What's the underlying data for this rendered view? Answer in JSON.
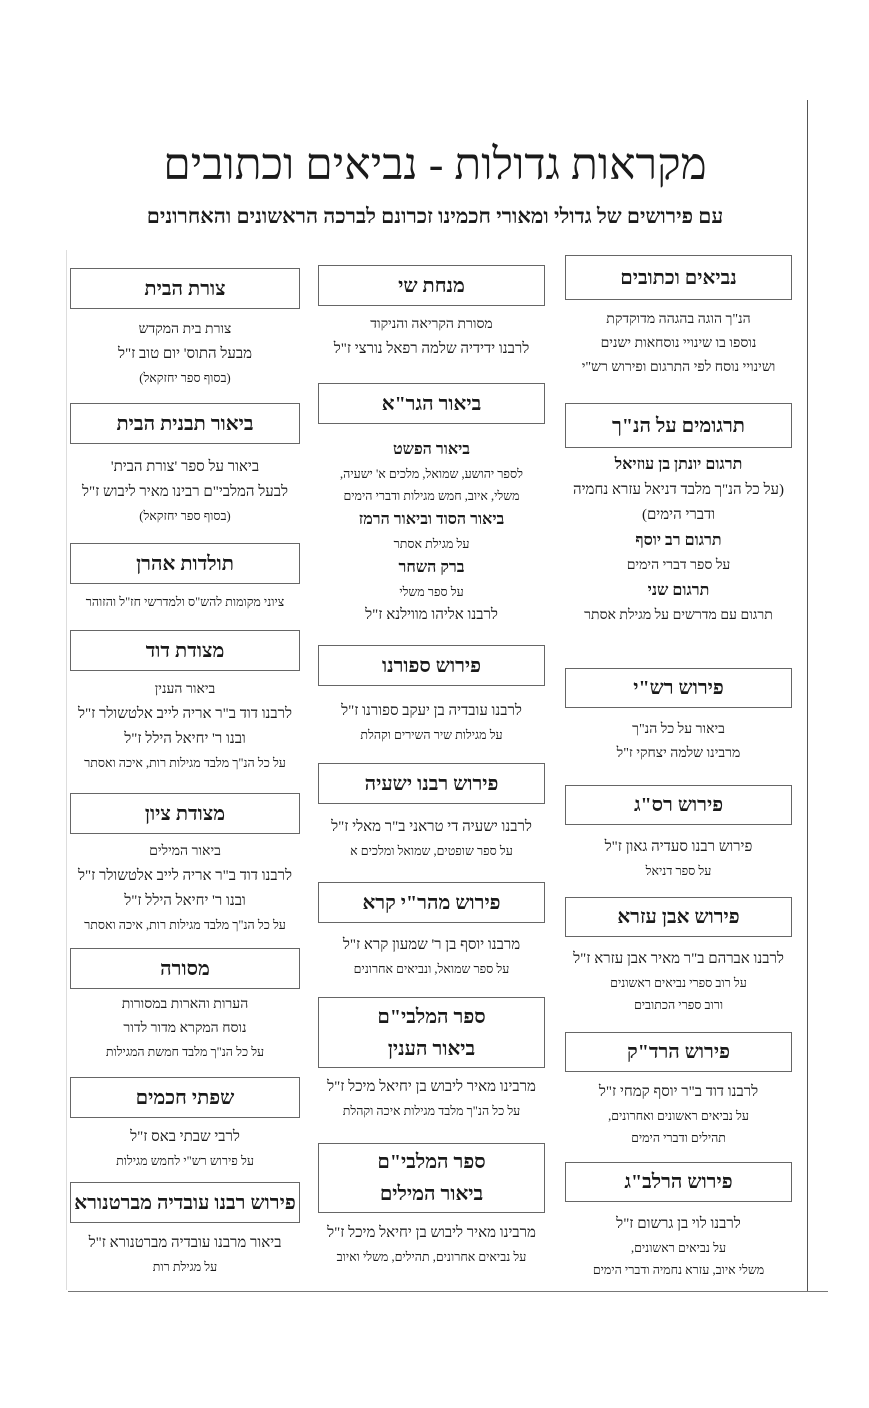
{
  "header": {
    "title": "מקראות גדולות - נביאים וכתובים",
    "subtitle": "עם פירושים של גדולי ומאורי חכמינו זכרונם לברכה הראשונים והאחרונים"
  },
  "columns": {
    "right": [
      {
        "heading": [
          "נביאים וכתובים"
        ],
        "lines": [
          {
            "text": "הנ\"ך הוגה בהגהה מדוקדקת",
            "kind": "n"
          },
          {
            "text": "נוספו בו שינויי נוסחאות ישנים",
            "kind": "n"
          },
          {
            "text": "ושינויי נוסח לפי התרגום ופירוש רש\"י",
            "kind": "n"
          }
        ]
      },
      {
        "heading": [
          "תרגומים על הנ\"ך"
        ],
        "lines": [
          {
            "text": "תרגום יונתן בן עוזיאל",
            "kind": "h"
          },
          {
            "text": "(על כל הנ\"ך מלבד דניאל עזרא נחמיה",
            "kind": "b"
          },
          {
            "text": "ודברי הימים)",
            "kind": "b"
          },
          {
            "text": "תרגום רב יוסף",
            "kind": "h"
          },
          {
            "text": "על ספר דברי הימים",
            "kind": "n"
          },
          {
            "text": "תרגום שני",
            "kind": "h"
          },
          {
            "text": "תרגום עם מדרשים על מגילת אסתר",
            "kind": "n"
          }
        ]
      },
      {
        "heading": [
          "פירוש רש\"י"
        ],
        "lines": [
          {
            "text": "ביאור על כל הנ\"ך",
            "kind": "n"
          },
          {
            "text": "מרבינו שלמה יצחקי ז\"ל",
            "kind": "n"
          }
        ]
      },
      {
        "heading": [
          "פירוש רס\"ג"
        ],
        "lines": [
          {
            "text": "פירוש רבנו סעדיה גאון ז\"ל",
            "kind": "b"
          },
          {
            "text": "על ספר דניאל",
            "kind": "s"
          }
        ]
      },
      {
        "heading": [
          "פירוש אבן עזרא"
        ],
        "lines": [
          {
            "text": "לרבנו אברהם ב\"ר מאיר אבן עזרא ז\"ל",
            "kind": "b"
          },
          {
            "text": "על רוב ספרי נביאים ראשונים",
            "kind": "s"
          },
          {
            "text": "ורוב ספרי הכתובים",
            "kind": "s"
          }
        ]
      },
      {
        "heading": [
          "פירוש הרד\"ק"
        ],
        "lines": [
          {
            "text": "לרבנו דוד ב\"ר יוסף קמחי ז\"ל",
            "kind": "b"
          },
          {
            "text": "על נביאים ראשונים ואחרונים,",
            "kind": "s"
          },
          {
            "text": "תהילים ודברי הימים",
            "kind": "s"
          }
        ]
      },
      {
        "heading": [
          "פירוש הרלב\"ג"
        ],
        "lines": [
          {
            "text": "לרבנו לוי בן גרשום ז\"ל",
            "kind": "b"
          },
          {
            "text": "על נביאים ראשונים,",
            "kind": "s"
          },
          {
            "text": "משלי איוב, עזרא נחמיה ודברי הימים",
            "kind": "s"
          }
        ]
      }
    ],
    "middle": [
      {
        "heading": [
          "מנחת שי"
        ],
        "lines": [
          {
            "text": "מסורת הקריאה והניקוד",
            "kind": "n"
          },
          {
            "text": "לרבנו ידידיה שלמה רפאל נורצי ז\"ל",
            "kind": "b"
          }
        ]
      },
      {
        "heading": [
          "ביאור הגר\"א"
        ],
        "lines": [
          {
            "text": "ביאור הפשט",
            "kind": "h"
          },
          {
            "text": "לספר יהושע, שמואל, מלכים א' ישעיה,",
            "kind": "s"
          },
          {
            "text": "משלי, איוב, חמש מגילות ודברי הימים",
            "kind": "s"
          },
          {
            "text": "ביאור הסוד וביאור הרמז",
            "kind": "h"
          },
          {
            "text": "על מגילת אסתר",
            "kind": "s"
          },
          {
            "text": "ברק השחר",
            "kind": "h"
          },
          {
            "text": "על ספר משלי",
            "kind": "s"
          },
          {
            "text": "לרבנו אליהו מווילנא ז\"ל",
            "kind": "b"
          }
        ]
      },
      {
        "heading": [
          "פירוש ספורנו"
        ],
        "lines": [
          {
            "text": "לרבנו עובדיה בן יעקב ספורנו ז\"ל",
            "kind": "b"
          },
          {
            "text": "על מגילות שיר השירים וקהלת",
            "kind": "s"
          }
        ]
      },
      {
        "heading": [
          "פירוש רבנו ישעיה"
        ],
        "lines": [
          {
            "text": "לרבנו ישעיה די טראני ב\"ר מאלי ז\"ל",
            "kind": "b"
          },
          {
            "text": "על ספר שופטים, שמואל ומלכים א",
            "kind": "s"
          }
        ]
      },
      {
        "heading": [
          "פירוש מהר\"י קרא"
        ],
        "lines": [
          {
            "text": "מרבנו יוסף בן ר' שמעון קרא ז\"ל",
            "kind": "b"
          },
          {
            "text": "על ספר שמואל, ונביאים אחרונים",
            "kind": "s"
          }
        ]
      },
      {
        "heading": [
          "ספר המלבי\"ם",
          "ביאור הענין"
        ],
        "lines": [
          {
            "text": "מרבינו מאיר ליבוש בן יחיאל מיכל ז\"ל",
            "kind": "b"
          },
          {
            "text": "על כל הנ\"ך מלבד מגילות איכה וקהלת",
            "kind": "s"
          }
        ]
      },
      {
        "heading": [
          "ספר המלבי\"ם",
          "ביאור המילים"
        ],
        "lines": [
          {
            "text": "מרבינו מאיר ליבוש בן יחיאל מיכל ז\"ל",
            "kind": "b"
          },
          {
            "text": "על נביאים אחרונים, תהילים, משלי ואיוב",
            "kind": "s"
          }
        ]
      }
    ],
    "left": [
      {
        "heading": [
          "צורת הבית"
        ],
        "lines": [
          {
            "text": "צורת בית המקדש",
            "kind": "n"
          },
          {
            "text": "מבעל התוס' יום טוב ז\"ל",
            "kind": "b"
          },
          {
            "text": "(בסוף ספר יחזקאל)",
            "kind": "s"
          }
        ]
      },
      {
        "heading": [
          "ביאור תבנית הבית"
        ],
        "lines": [
          {
            "text": "ביאור על ספר 'צורת הבית'",
            "kind": "b"
          },
          {
            "text": "לבעל המלבי\"ם רבינו מאיר ליבוש ז\"ל",
            "kind": "b"
          },
          {
            "text": "(בסוף ספר יחזקאל)",
            "kind": "s"
          }
        ]
      },
      {
        "heading": [
          "תולדות אהרן"
        ],
        "lines": [
          {
            "text": "ציוני מקומות להש\"ס ולמדרשי חז\"ל והזוהר",
            "kind": "s"
          }
        ]
      },
      {
        "heading": [
          "מצודת דוד"
        ],
        "lines": [
          {
            "text": "ביאור הענין",
            "kind": "n"
          },
          {
            "text": "לרבנו דוד ב\"ר אריה לייב אלטשולר ז\"ל",
            "kind": "b"
          },
          {
            "text": "ובנו ר' יחיאל הילל ז\"ל",
            "kind": "b"
          },
          {
            "text": "על כל הנ\"ך מלבד מגילות רות, איכה ואסתר",
            "kind": "s"
          }
        ]
      },
      {
        "heading": [
          "מצודת ציון"
        ],
        "lines": [
          {
            "text": "ביאור המילים",
            "kind": "n"
          },
          {
            "text": "לרבנו דוד ב\"ר אריה לייב אלטשולר ז\"ל",
            "kind": "b"
          },
          {
            "text": "ובנו ר' יחיאל הילל ז\"ל",
            "kind": "b"
          },
          {
            "text": "על כל הנ\"ך מלבד מגילות רות, איכה ואסתר",
            "kind": "s"
          }
        ]
      },
      {
        "heading": [
          "מסורה"
        ],
        "lines": [
          {
            "text": "הערות והארות במסורות",
            "kind": "n"
          },
          {
            "text": "נוסח המקרא מדור לדור",
            "kind": "n"
          },
          {
            "text": "על כל הנ\"ך מלבד חמשת המגילות",
            "kind": "s"
          }
        ]
      },
      {
        "heading": [
          "שפתי חכמים"
        ],
        "lines": [
          {
            "text": "לרבי שבתי באס ז\"ל",
            "kind": "b"
          },
          {
            "text": "על פירוש רש\"י לחמש מגילות",
            "kind": "s"
          }
        ]
      },
      {
        "heading": [
          "פירוש רבנו עובדיה מברטנורא"
        ],
        "lines": [
          {
            "text": "ביאור מרבנו עובדיה מברטנורא ז\"ל",
            "kind": "b"
          },
          {
            "text": "על מגילת רות",
            "kind": "s"
          }
        ]
      }
    ]
  }
}
